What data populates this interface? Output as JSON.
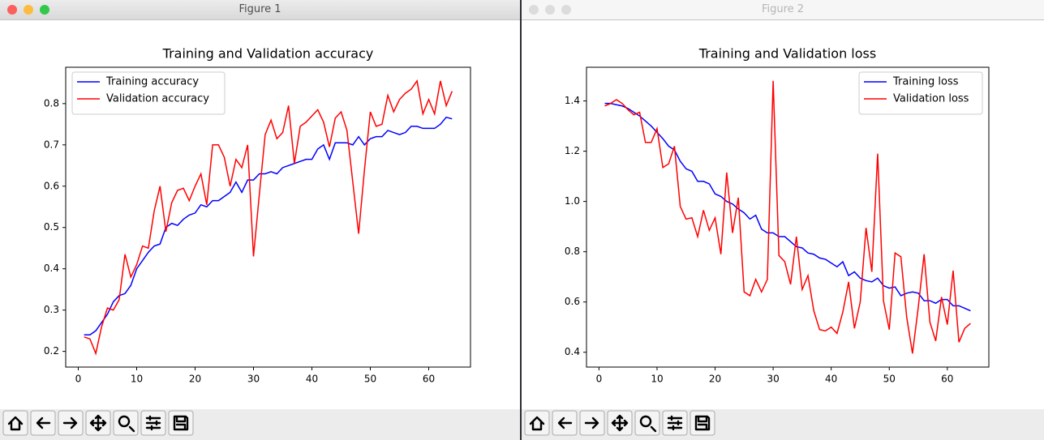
{
  "windows": [
    {
      "title": "Figure 1"
    },
    {
      "title": "Figure 2"
    }
  ],
  "chart_data": [
    {
      "type": "line",
      "title": "Training and Validation accuracy",
      "x": [
        1,
        2,
        3,
        4,
        5,
        6,
        7,
        8,
        9,
        10,
        11,
        12,
        13,
        14,
        15,
        16,
        17,
        18,
        19,
        20,
        21,
        22,
        23,
        24,
        25,
        26,
        27,
        28,
        29,
        30,
        31,
        32,
        33,
        34,
        35,
        36,
        37,
        38,
        39,
        40,
        41,
        42,
        43,
        44,
        45,
        46,
        47,
        48,
        49,
        50,
        51,
        52,
        53,
        54,
        55,
        56,
        57,
        58,
        59,
        60,
        61,
        62,
        63,
        64
      ],
      "xlim": [
        -2.15,
        67.15
      ],
      "xticks": [
        0,
        10,
        20,
        30,
        40,
        50,
        60
      ],
      "ylim": [
        0.162,
        0.888
      ],
      "yticks": [
        0.2,
        0.3,
        0.4,
        0.5,
        0.6,
        0.7,
        0.8
      ],
      "legend": "upper left",
      "series": [
        {
          "name": "Training accuracy",
          "color": "#0000ff",
          "values": [
            0.24,
            0.24,
            0.25,
            0.27,
            0.29,
            0.32,
            0.335,
            0.34,
            0.36,
            0.4,
            0.42,
            0.44,
            0.455,
            0.46,
            0.5,
            0.51,
            0.505,
            0.52,
            0.53,
            0.535,
            0.555,
            0.55,
            0.565,
            0.565,
            0.575,
            0.585,
            0.61,
            0.585,
            0.615,
            0.615,
            0.63,
            0.63,
            0.635,
            0.63,
            0.645,
            0.65,
            0.655,
            0.66,
            0.665,
            0.665,
            0.69,
            0.7,
            0.665,
            0.705,
            0.705,
            0.705,
            0.7,
            0.72,
            0.7,
            0.715,
            0.72,
            0.72,
            0.735,
            0.73,
            0.725,
            0.73,
            0.745,
            0.745,
            0.74,
            0.74,
            0.74,
            0.75,
            0.767,
            0.763
          ]
        },
        {
          "name": "Validation accuracy",
          "color": "#ff0000",
          "values": [
            0.235,
            0.23,
            0.195,
            0.26,
            0.305,
            0.3,
            0.325,
            0.435,
            0.38,
            0.41,
            0.455,
            0.45,
            0.54,
            0.6,
            0.49,
            0.56,
            0.59,
            0.595,
            0.565,
            0.6,
            0.63,
            0.555,
            0.7,
            0.7,
            0.67,
            0.6,
            0.665,
            0.645,
            0.7,
            0.43,
            0.58,
            0.725,
            0.76,
            0.715,
            0.73,
            0.795,
            0.655,
            0.745,
            0.755,
            0.77,
            0.785,
            0.755,
            0.695,
            0.765,
            0.78,
            0.735,
            0.61,
            0.485,
            0.64,
            0.78,
            0.745,
            0.75,
            0.82,
            0.78,
            0.81,
            0.825,
            0.835,
            0.855,
            0.775,
            0.81,
            0.775,
            0.855,
            0.795,
            0.83
          ]
        }
      ]
    },
    {
      "type": "line",
      "title": "Training and Validation loss",
      "x": [
        1,
        2,
        3,
        4,
        5,
        6,
        7,
        8,
        9,
        10,
        11,
        12,
        13,
        14,
        15,
        16,
        17,
        18,
        19,
        20,
        21,
        22,
        23,
        24,
        25,
        26,
        27,
        28,
        29,
        30,
        31,
        32,
        33,
        34,
        35,
        36,
        37,
        38,
        39,
        40,
        41,
        42,
        43,
        44,
        45,
        46,
        47,
        48,
        49,
        50,
        51,
        52,
        53,
        54,
        55,
        56,
        57,
        58,
        59,
        60,
        61,
        62,
        63,
        64
      ],
      "xlim": [
        -2.15,
        67.15
      ],
      "xticks": [
        0,
        10,
        20,
        30,
        40,
        50,
        60
      ],
      "ylim": [
        0.341,
        1.534
      ],
      "yticks": [
        0.4,
        0.6,
        0.8,
        {
          "value": 1,
          "label": "1.0"
        },
        1.2,
        1.4
      ],
      "legend": "upper right",
      "series": [
        {
          "name": "Training loss",
          "color": "#0000ff",
          "values": [
            1.39,
            1.39,
            1.385,
            1.38,
            1.37,
            1.355,
            1.34,
            1.32,
            1.3,
            1.275,
            1.25,
            1.22,
            1.205,
            1.16,
            1.13,
            1.12,
            1.08,
            1.08,
            1.07,
            1.03,
            1.02,
            1.0,
            0.99,
            0.97,
            0.955,
            0.93,
            0.945,
            0.89,
            0.875,
            0.875,
            0.86,
            0.86,
            0.84,
            0.82,
            0.815,
            0.795,
            0.79,
            0.775,
            0.77,
            0.755,
            0.74,
            0.76,
            0.705,
            0.72,
            0.695,
            0.685,
            0.68,
            0.695,
            0.665,
            0.655,
            0.66,
            0.625,
            0.635,
            0.64,
            0.635,
            0.605,
            0.605,
            0.595,
            0.61,
            0.61,
            0.585,
            0.585,
            0.575,
            0.565
          ]
        },
        {
          "name": "Validation loss",
          "color": "#ff0000",
          "values": [
            1.38,
            1.39,
            1.405,
            1.39,
            1.365,
            1.345,
            1.355,
            1.235,
            1.235,
            1.29,
            1.135,
            1.15,
            1.22,
            0.98,
            0.93,
            0.935,
            0.86,
            0.965,
            0.885,
            0.935,
            0.79,
            1.115,
            0.875,
            1.015,
            0.64,
            0.625,
            0.69,
            0.64,
            0.69,
            1.48,
            0.785,
            0.76,
            0.67,
            0.86,
            0.65,
            0.705,
            0.565,
            0.49,
            0.485,
            0.5,
            0.475,
            0.56,
            0.68,
            0.495,
            0.6,
            0.895,
            0.72,
            1.19,
            0.605,
            0.49,
            0.795,
            0.78,
            0.54,
            0.395,
            0.58,
            0.79,
            0.52,
            0.445,
            0.62,
            0.51,
            0.725,
            0.44,
            0.495,
            0.515
          ]
        }
      ]
    }
  ]
}
